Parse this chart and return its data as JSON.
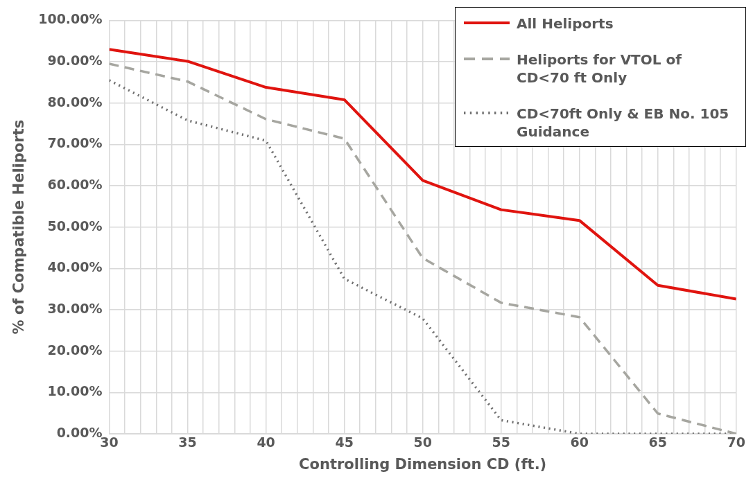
{
  "chart_data": {
    "type": "line",
    "xlabel": "Controlling Dimension CD (ft.)",
    "ylabel": "% of Compatible Heliports",
    "x": [
      30,
      35,
      40,
      45,
      50,
      55,
      60,
      65,
      70
    ],
    "xlim": [
      30,
      70
    ],
    "xticks": [
      30,
      {
        "value": 31,
        "label": null
      },
      {
        "value": 32,
        "label": null
      },
      {
        "value": 33,
        "label": null
      },
      {
        "value": 34,
        "label": null
      },
      35,
      {
        "value": 36,
        "label": null
      },
      {
        "value": 37,
        "label": null
      },
      {
        "value": 38,
        "label": null
      },
      {
        "value": 39,
        "label": null
      },
      40,
      {
        "value": 41,
        "label": null
      },
      {
        "value": 42,
        "label": null
      },
      {
        "value": 43,
        "label": null
      },
      {
        "value": 44,
        "label": null
      },
      45,
      {
        "value": 46,
        "label": null
      },
      {
        "value": 47,
        "label": null
      },
      {
        "value": 48,
        "label": null
      },
      {
        "value": 49,
        "label": null
      },
      50,
      {
        "value": 51,
        "label": null
      },
      {
        "value": 52,
        "label": null
      },
      {
        "value": 53,
        "label": null
      },
      {
        "value": 54,
        "label": null
      },
      55,
      {
        "value": 56,
        "label": null
      },
      {
        "value": 57,
        "label": null
      },
      {
        "value": 58,
        "label": null
      },
      {
        "value": 59,
        "label": null
      },
      60,
      {
        "value": 61,
        "label": null
      },
      {
        "value": 62,
        "label": null
      },
      {
        "value": 63,
        "label": null
      },
      {
        "value": 64,
        "label": null
      },
      65,
      {
        "value": 66,
        "label": null
      },
      {
        "value": 67,
        "label": null
      },
      {
        "value": 68,
        "label": null
      },
      {
        "value": 69,
        "label": null
      },
      70
    ],
    "ylim": [
      0,
      100
    ],
    "yticks": [
      {
        "value": 0,
        "label": "0.00%"
      },
      {
        "value": 10,
        "label": "10.00%"
      },
      {
        "value": 20,
        "label": "20.00%"
      },
      {
        "value": 30,
        "label": "30.00%"
      },
      {
        "value": 40,
        "label": "40.00%"
      },
      {
        "value": 50,
        "label": "50.00%"
      },
      {
        "value": 60,
        "label": "60.00%"
      },
      {
        "value": 70,
        "label": "70.00%"
      },
      {
        "value": 80,
        "label": "80.00%"
      },
      {
        "value": 90,
        "label": "90.00%"
      },
      {
        "value": 100,
        "label": "100.00%"
      }
    ],
    "grid": true,
    "legend": "top right",
    "marker": "none",
    "series": [
      {
        "name": "All Heliports",
        "color": "#e0140f",
        "line_style": "solid",
        "values": [
          93.0,
          90.1,
          83.8,
          80.8,
          61.3,
          54.2,
          51.6,
          35.9,
          32.6
        ]
      },
      {
        "name": "Heliports for VTOL of CD<70 ft Only",
        "color": "#a6a6a0",
        "line_style": "dashed",
        "values": [
          89.5,
          85.2,
          76.1,
          71.4,
          42.5,
          31.7,
          28.2,
          4.9,
          0
        ]
      },
      {
        "name": "CD<70ft Only & EB No. 105 Guidance",
        "color": "#707070",
        "line_style": "dotted",
        "values": [
          85.5,
          75.8,
          70.9,
          37.5,
          27.9,
          3.3,
          0,
          0,
          0
        ]
      }
    ]
  }
}
